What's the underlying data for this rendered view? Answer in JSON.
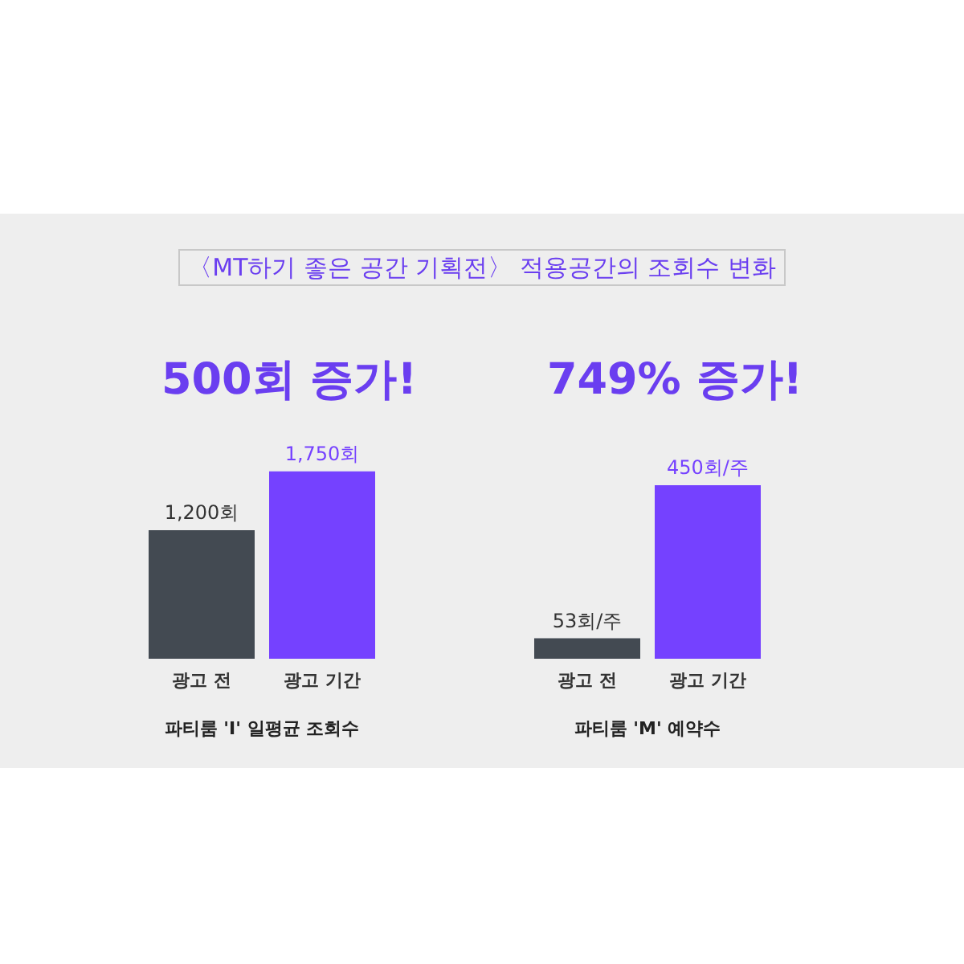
{
  "chart_data": [
    {
      "type": "other",
      "title": "〈MT하기 좋은 공간 기획전〉 적용공간의 조회수 변화"
    },
    {
      "type": "bar",
      "title": "500회 증가!",
      "xlabel": "파티룸 'I' 일평균 조회수",
      "categories": [
        "광고 전",
        "광고 기간"
      ],
      "values": [
        1200,
        1750
      ],
      "colors": [
        "#434a52",
        "#7541ff"
      ],
      "value_labels": [
        "1,200회",
        "1,750회"
      ]
    },
    {
      "type": "bar",
      "title": "749% 증가!",
      "xlabel": "파티룸 'M' 예약수",
      "categories": [
        "광고 전",
        "광고 기간"
      ],
      "values": [
        53,
        450
      ],
      "colors": [
        "#434a52",
        "#7541ff"
      ],
      "value_labels": [
        "53회/주",
        "450회/주"
      ]
    }
  ]
}
